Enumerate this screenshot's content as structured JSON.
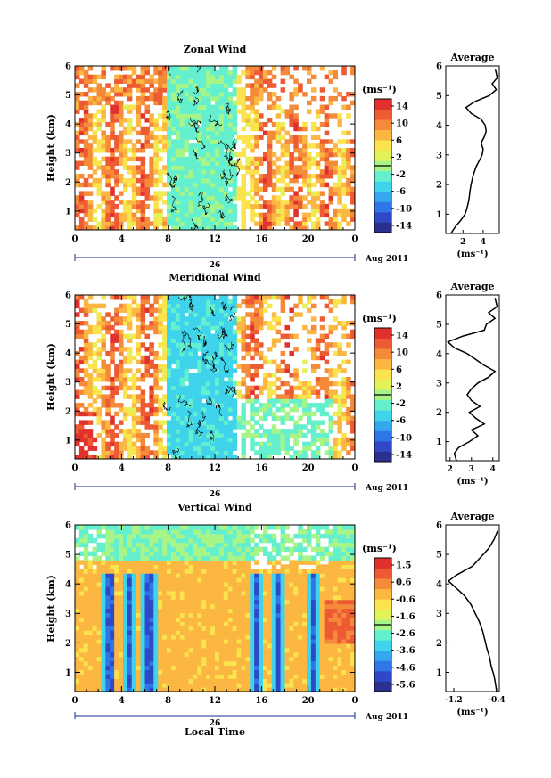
{
  "figure": {
    "xlabel": "Local Time",
    "date_label": "Aug 2011",
    "day_label": "26"
  },
  "colorscale": [
    "#2b2f8e",
    "#2f48c6",
    "#2f76e8",
    "#36a6ef",
    "#3fd3ec",
    "#64f0cf",
    "#a8f587",
    "#e2f35a",
    "#fae34c",
    "#fbb742",
    "#f58a3a",
    "#ee5a33",
    "#e0312d"
  ],
  "chart_data": [
    {
      "type": "heatmap",
      "title": "Zonal Wind",
      "xlabel": "Local Time",
      "ylabel": "Height (km)",
      "xticks": [
        "0",
        "4",
        "8",
        "12",
        "16",
        "20",
        "0"
      ],
      "xlim": [
        0,
        24
      ],
      "yticks": [
        "1",
        "2",
        "3",
        "4",
        "5",
        "6"
      ],
      "ylim": [
        0.35,
        6
      ],
      "colorbar_unit": "(ms⁻¹)",
      "colorbar_ticks": [
        "14",
        "10",
        "6",
        "2",
        "-2",
        "-6",
        "-10",
        "-14"
      ],
      "colorbar_range": [
        -16,
        16
      ],
      "profile": {
        "title": "Average",
        "xlabel": "(ms⁻¹)",
        "xticks": [
          "2",
          "4"
        ],
        "xlim": [
          0.3,
          5.6
        ],
        "heights": [
          0.35,
          0.6,
          0.8,
          1.0,
          1.2,
          1.5,
          1.8,
          2.0,
          2.3,
          2.6,
          2.8,
          3.0,
          3.2,
          3.4,
          3.6,
          3.8,
          4.0,
          4.2,
          4.4,
          4.6,
          4.8,
          5.0,
          5.2,
          5.4,
          5.6,
          5.9
        ],
        "values": [
          0.8,
          1.3,
          1.8,
          2.2,
          2.4,
          2.6,
          2.7,
          2.8,
          3.0,
          3.3,
          3.6,
          3.9,
          4.0,
          3.8,
          4.1,
          4.3,
          4.2,
          3.8,
          2.8,
          2.3,
          3.2,
          4.6,
          5.3,
          4.9,
          5.4,
          5.2
        ]
      }
    },
    {
      "type": "heatmap",
      "title": "Meridional Wind",
      "xlabel": "Local Time",
      "ylabel": "Height (km)",
      "xticks": [
        "0",
        "4",
        "8",
        "12",
        "16",
        "20",
        "0"
      ],
      "xlim": [
        0,
        24
      ],
      "yticks": [
        "1",
        "2",
        "3",
        "4",
        "5",
        "6"
      ],
      "ylim": [
        0.35,
        6
      ],
      "colorbar_unit": "(ms⁻¹)",
      "colorbar_ticks": [
        "14",
        "10",
        "6",
        "2",
        "-2",
        "-6",
        "-10",
        "-14"
      ],
      "colorbar_range": [
        -16,
        16
      ],
      "profile": {
        "title": "Average",
        "xlabel": "(ms⁻¹)",
        "xticks": [
          "2",
          "3",
          "4"
        ],
        "xlim": [
          1.8,
          4.3
        ],
        "heights": [
          0.35,
          0.6,
          0.8,
          1.0,
          1.2,
          1.4,
          1.6,
          1.8,
          2.0,
          2.2,
          2.4,
          2.6,
          2.8,
          3.0,
          3.2,
          3.4,
          3.6,
          3.8,
          4.0,
          4.2,
          4.4,
          4.6,
          4.8,
          5.0,
          5.2,
          5.4,
          5.6,
          5.9
        ],
        "values": [
          2.3,
          2.2,
          2.4,
          2.9,
          3.3,
          3.0,
          3.6,
          3.2,
          2.9,
          3.4,
          3.0,
          2.8,
          3.0,
          3.3,
          3.8,
          4.1,
          3.6,
          3.2,
          2.8,
          2.2,
          1.9,
          2.6,
          3.6,
          3.7,
          4.1,
          3.8,
          4.2,
          4.1
        ]
      }
    },
    {
      "type": "heatmap",
      "title": "Vertical Wind",
      "xlabel": "Local Time",
      "ylabel": "Height (km)",
      "xticks": [
        "0",
        "4",
        "8",
        "12",
        "16",
        "20",
        "0"
      ],
      "xlim": [
        0,
        24
      ],
      "yticks": [
        "1",
        "2",
        "3",
        "4",
        "5",
        "6"
      ],
      "ylim": [
        0.35,
        6
      ],
      "colorbar_unit": "(ms⁻¹)",
      "colorbar_ticks": [
        "1.5",
        "0.6",
        "-0.6",
        "-1.6",
        "-2.6",
        "-3.6",
        "-4.6",
        "-5.6"
      ],
      "colorbar_range": [
        -6.2,
        2.0
      ],
      "profile": {
        "title": "Average",
        "xlabel": "(ms⁻¹)",
        "xticks": [
          "-1.2",
          "-0.4"
        ],
        "xlim": [
          -1.35,
          -0.35
        ],
        "heights": [
          0.35,
          0.6,
          0.9,
          1.2,
          1.5,
          1.8,
          2.1,
          2.4,
          2.7,
          3.0,
          3.3,
          3.6,
          3.9,
          4.1,
          4.3,
          4.6,
          4.9,
          5.2,
          5.5,
          5.8
        ],
        "values": [
          -0.4,
          -0.42,
          -0.45,
          -0.5,
          -0.53,
          -0.58,
          -0.62,
          -0.66,
          -0.72,
          -0.8,
          -0.88,
          -1.0,
          -1.18,
          -1.3,
          -1.15,
          -0.85,
          -0.7,
          -0.55,
          -0.45,
          -0.38
        ]
      }
    }
  ]
}
